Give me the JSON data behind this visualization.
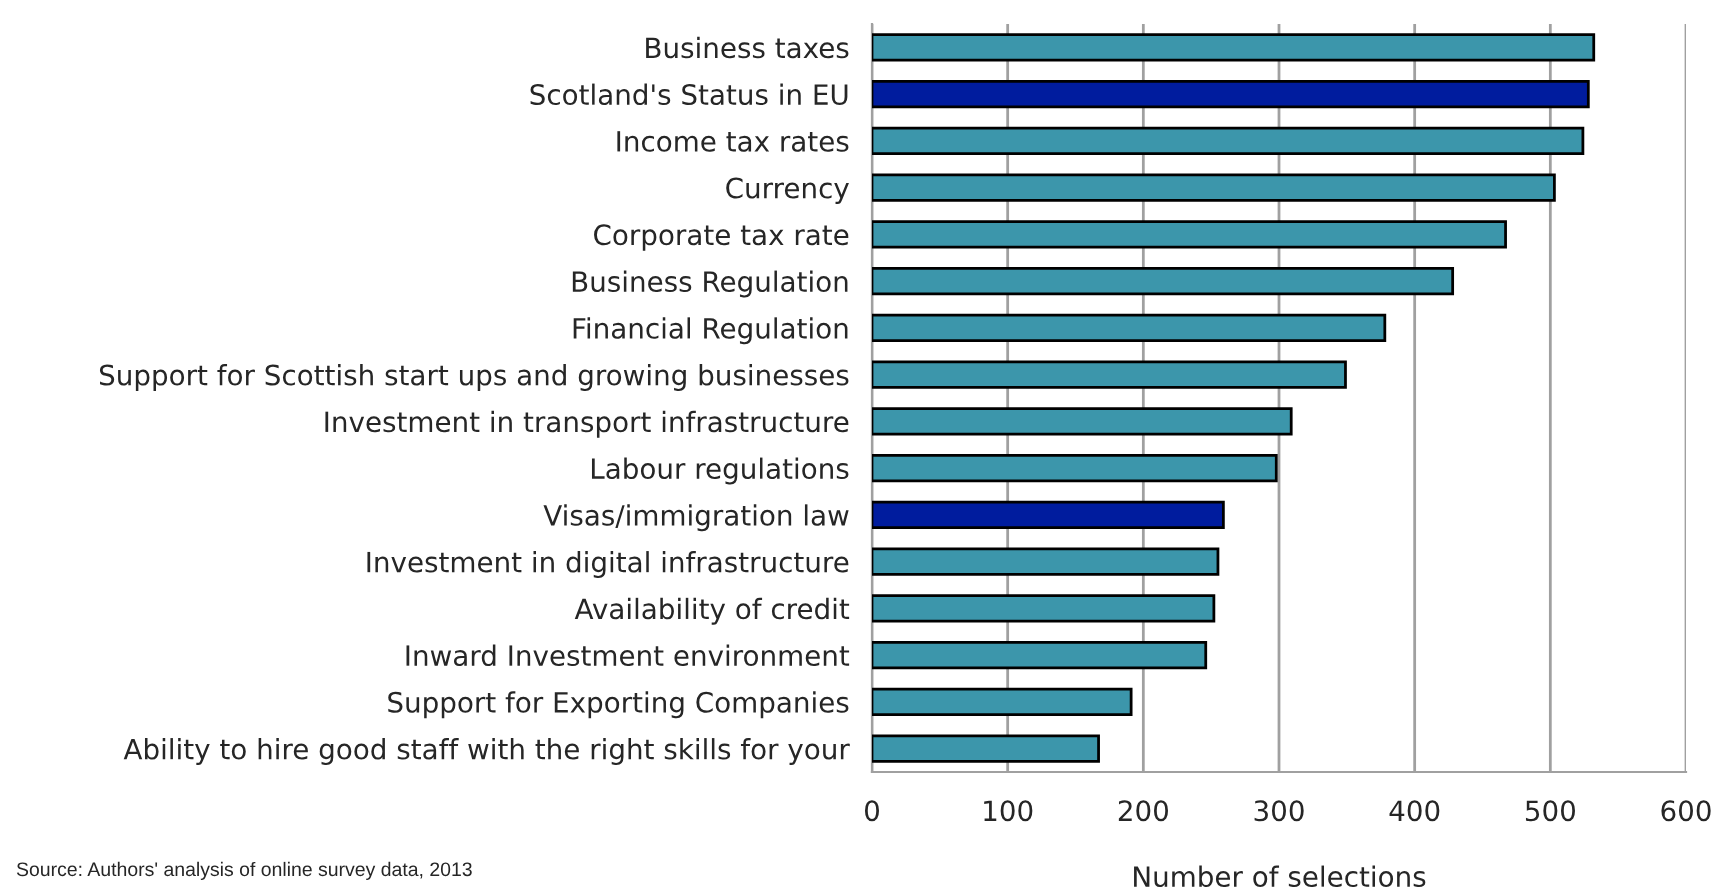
{
  "chart_data": {
    "type": "bar",
    "orientation": "horizontal",
    "categories": [
      "Business taxes",
      "Scotland's Status in EU",
      "Income tax rates",
      "Currency",
      "Corporate tax rate",
      "Business Regulation",
      "Financial Regulation",
      "Support for Scottish start ups and growing businesses",
      "Investment in transport infrastructure",
      "Labour regulations",
      "Visas/immigration law",
      "Investment in digital infrastructure",
      "Availability of credit",
      "Inward Investment environment",
      "Support for Exporting Companies",
      "Ability to hire good staff with the right skills for your"
    ],
    "values": [
      532,
      528,
      524,
      503,
      467,
      428,
      378,
      349,
      309,
      298,
      259,
      255,
      252,
      246,
      191,
      167
    ],
    "colors": [
      "#3c96ab",
      "#001c9e",
      "#3c96ab",
      "#3c96ab",
      "#3c96ab",
      "#3c96ab",
      "#3c96ab",
      "#3c96ab",
      "#3c96ab",
      "#3c96ab",
      "#001c9e",
      "#3c96ab",
      "#3c96ab",
      "#3c96ab",
      "#3c96ab",
      "#3c96ab"
    ],
    "xlabel": "Number of selections",
    "xlim": [
      0,
      600
    ],
    "xticks": [
      0,
      100,
      200,
      300,
      400,
      500,
      600
    ],
    "grid": "x",
    "annotations": [
      "Source: Authors' analysis of online survey data, 2013"
    ]
  }
}
